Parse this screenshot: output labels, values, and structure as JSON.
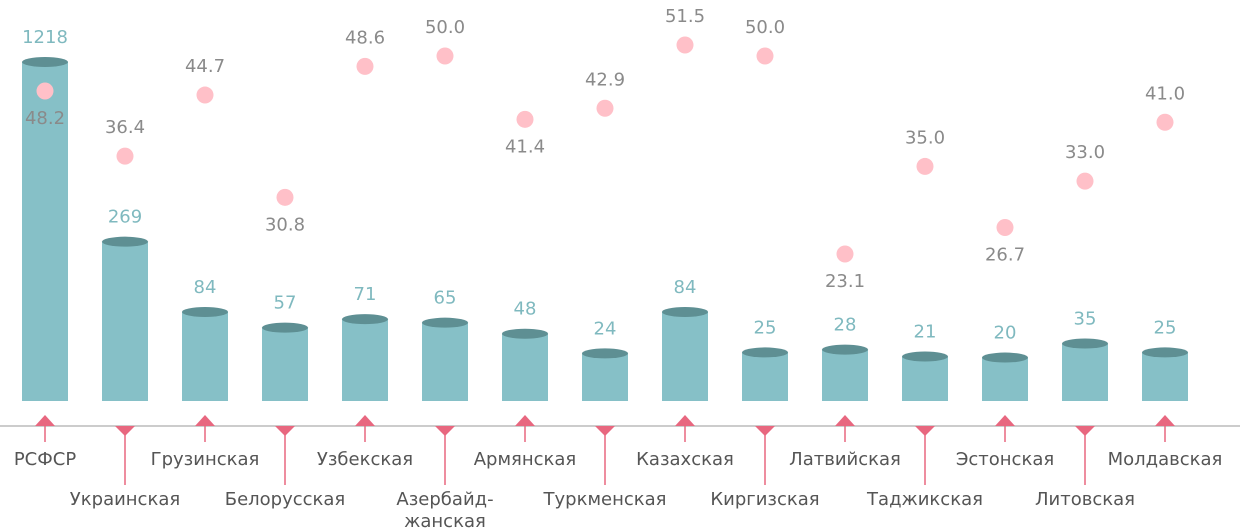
{
  "chart_data": {
    "type": "bar",
    "categories": [
      "РСФСР",
      "Украинская",
      "Грузинская",
      "Белорусская",
      "Узбекская",
      "Азербайд-\nжанская",
      "Армянская",
      "Туркменская",
      "Казахская",
      "Киргизская",
      "Латвийская",
      "Таджикская",
      "Эстонская",
      "Литовская",
      "Молдавская"
    ],
    "series": [
      {
        "color": "#86c0c7",
        "values": [
          1218,
          269,
          84,
          57,
          71,
          65,
          48,
          24,
          84,
          25,
          28,
          21,
          20,
          35,
          25
        ]
      },
      {
        "color": "#ffc0c8",
        "values": [
          48.2,
          36.4,
          44.7,
          30.8,
          48.6,
          50.0,
          41.4,
          42.9,
          51.5,
          50.0,
          23.1,
          35.0,
          26.7,
          33.0,
          41.0
        ],
        "value_labels": [
          "48.2",
          "36.4",
          "44.7",
          "30.8",
          "48.6",
          "50.0",
          "41.4",
          "42.9",
          "51.5",
          "50.0",
          "23.1",
          "35.0",
          "26.7",
          "33.0",
          "41.0"
        ]
      }
    ],
    "yscale": "sqrt"
  }
}
